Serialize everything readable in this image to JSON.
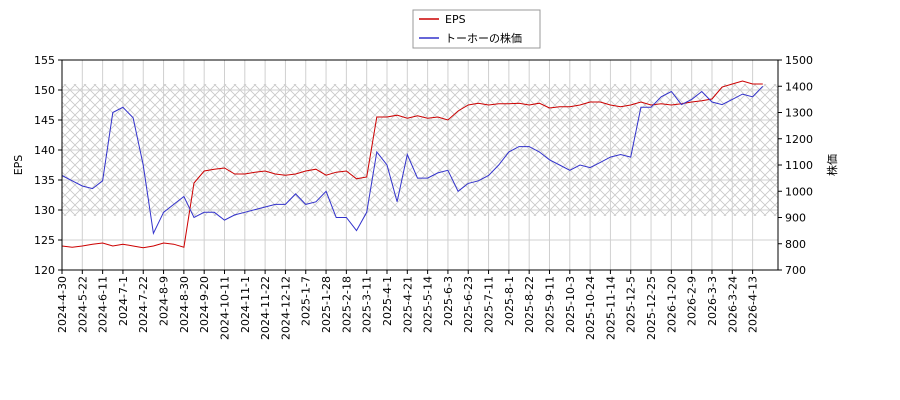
{
  "chart_data": {
    "type": "line",
    "x": [
      "2024-4-30",
      null,
      "2024-5-22",
      null,
      "2024-6-11",
      null,
      "2024-7-1",
      null,
      "2024-7-22",
      null,
      "2024-8-9",
      null,
      "2024-8-30",
      null,
      "2024-9-20",
      null,
      "2024-10-11",
      null,
      "2024-11-1",
      null,
      "2024-11-22",
      null,
      "2024-12-12",
      null,
      "2025-1-7",
      null,
      "2025-1-28",
      null,
      "2025-2-18",
      null,
      "2025-3-11",
      null,
      "2025-4-1",
      null,
      "2025-4-21",
      null,
      "2025-5-14",
      null,
      "2025-6-3",
      null,
      "2025-6-23",
      null,
      "2025-7-11",
      null,
      "2025-8-1",
      null,
      "2025-8-22",
      null,
      "2025-9-11",
      null,
      "2025-10-3",
      null,
      "2025-10-24",
      null,
      "2025-11-14",
      null,
      "2025-12-5",
      null,
      "2025-12-25",
      null,
      "2026-1-20",
      null,
      "2026-2-9",
      null,
      "2026-3-3",
      null,
      "2026-3-24",
      null,
      "2026-4-13",
      null
    ],
    "ylabel": "EPS",
    "y2label": "株価",
    "ylim": [
      120,
      155
    ],
    "yticks": [
      120,
      125,
      130,
      135,
      140,
      145,
      150,
      155
    ],
    "y2lim": [
      700,
      1500
    ],
    "y2ticks": [
      700,
      800,
      900,
      1000,
      1100,
      1200,
      1300,
      1400,
      1500
    ],
    "grid": true,
    "legend": "top",
    "series": [
      {
        "name": "EPS",
        "color": "#cc0000",
        "values": [
          124,
          123.8,
          124,
          124.3,
          124.5,
          124,
          124.3,
          124,
          123.7,
          124,
          124.5,
          124.3,
          123.8,
          134.5,
          136.5,
          136.8,
          137,
          136,
          136,
          136.3,
          136.5,
          136,
          135.8,
          136,
          136.5,
          136.8,
          135.8,
          136.3,
          136.5,
          135.2,
          135.5,
          145.5,
          145.5,
          145.8,
          145.3,
          145.7,
          145.3,
          145.5,
          145,
          146.5,
          147.5,
          147.8,
          147.5,
          147.7,
          147.7,
          147.8,
          147.5,
          147.8,
          147,
          147.2,
          147.2,
          147.5,
          148,
          148,
          147.5,
          147.2,
          147.5,
          148,
          147.5,
          147.7,
          147.5,
          147.7,
          148,
          148.2,
          148.5,
          150.5,
          151,
          151.5,
          151,
          151
        ]
      },
      {
        "name": "トーホーの株価",
        "color": "#3333cc",
        "axis": "y2",
        "values": [
          1060,
          1040,
          1020,
          1010,
          1040,
          1300,
          1320,
          1280,
          1100,
          840,
          920,
          950,
          980,
          900,
          920,
          920,
          890,
          910,
          920,
          930,
          940,
          950,
          950,
          990,
          950,
          960,
          1000,
          900,
          900,
          850,
          920,
          1150,
          1100,
          960,
          1140,
          1050,
          1050,
          1070,
          1080,
          1000,
          1030,
          1040,
          1060,
          1100,
          1150,
          1170,
          1170,
          1150,
          1120,
          1100,
          1080,
          1100,
          1090,
          1110,
          1130,
          1140,
          1130,
          1320,
          1320,
          1360,
          1380,
          1330,
          1350,
          1380,
          1340,
          1330,
          1350,
          1370,
          1360,
          1400
        ]
      }
    ]
  }
}
